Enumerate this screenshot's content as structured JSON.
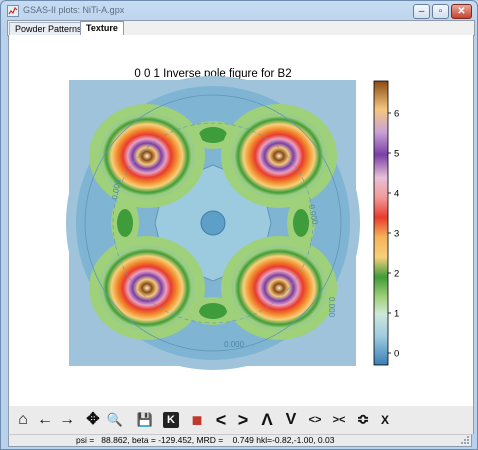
{
  "window": {
    "title": "GSAS-II plots: NiTi-A.gpx",
    "min_label": "–",
    "max_label": "▫",
    "close_label": "✕"
  },
  "tabs": [
    {
      "label": "Powder Patterns",
      "active": false
    },
    {
      "label": "Texture",
      "active": true
    }
  ],
  "plot": {
    "title": "0 0 1 Inverse pole figure for B2",
    "contour_labels": [
      "0.000",
      "0.000",
      "0.000",
      "0.000"
    ],
    "colorbar": {
      "ticks": [
        "0",
        "1",
        "2",
        "3",
        "4",
        "5",
        "6"
      ],
      "range": [
        -0.3,
        6.8
      ]
    },
    "background_color": "#9ec3da",
    "peak_color": "#8b4a12"
  },
  "toolbar": {
    "buttons": [
      {
        "name": "home-icon",
        "glyph": "⌂"
      },
      {
        "name": "back-icon",
        "glyph": "←"
      },
      {
        "name": "forward-icon",
        "glyph": "→"
      },
      {
        "name": "pan-icon",
        "glyph": "✥"
      },
      {
        "name": "zoom-icon",
        "glyph": "🔍"
      },
      {
        "name": "save-icon",
        "glyph": "💾"
      },
      {
        "name": "key-icon",
        "glyph": "K"
      },
      {
        "name": "color-icon",
        "glyph": "■"
      },
      {
        "name": "shift-left-icon",
        "glyph": "<"
      },
      {
        "name": "shift-right-icon",
        "glyph": ">"
      },
      {
        "name": "shift-up-icon",
        "glyph": "Λ"
      },
      {
        "name": "shift-down-icon",
        "glyph": "V"
      },
      {
        "name": "expand-x-icon",
        "glyph": "<>"
      },
      {
        "name": "shrink-x-icon",
        "glyph": "><"
      },
      {
        "name": "expand-y-icon",
        "glyph": "≎"
      },
      {
        "name": "shrink-y-icon",
        "glyph": "X"
      }
    ]
  },
  "status": {
    "text": "psi =   88.862, beta = -129.452, MRD =    0.749 hkl=-0.82,-1.00, 0.03"
  }
}
